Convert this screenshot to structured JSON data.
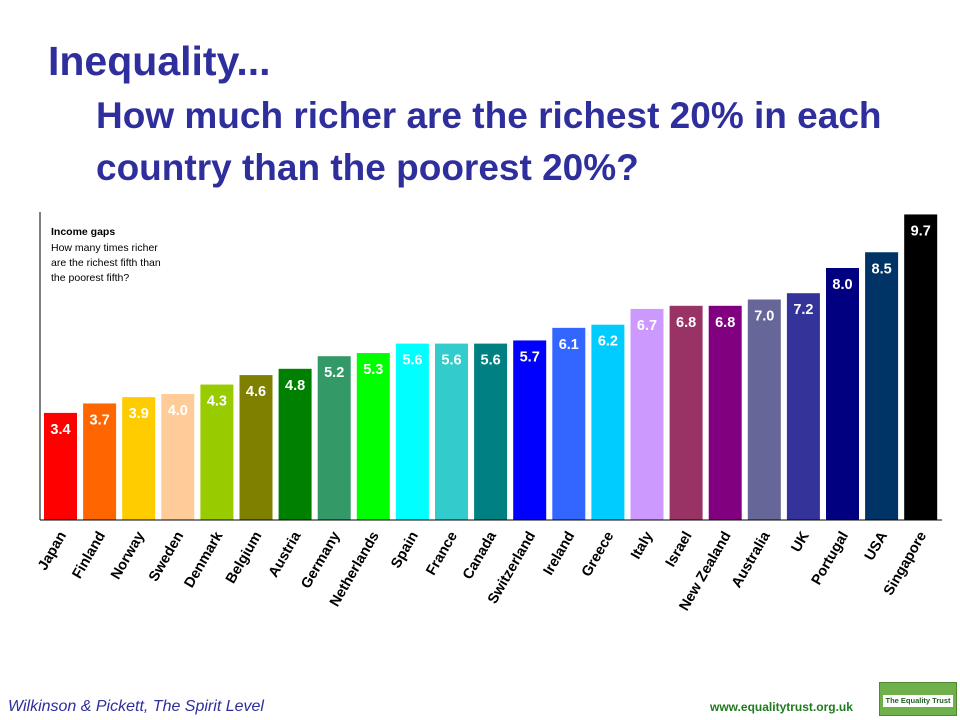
{
  "header": {
    "title_line1": "Inequality...",
    "title_line2": "How much richer are the richest 20% in each country than the poorest 20%?"
  },
  "footer": {
    "source": "Wilkinson & Pickett, The Spirit Level",
    "url": "www.equalitytrust.org.uk",
    "logo_text": "The Equality Trust"
  },
  "chart_data": {
    "type": "bar",
    "box_title": "Income gaps",
    "box_lines": [
      "How many times richer",
      "are the richest fifth than",
      "the poorest fifth?"
    ],
    "categories": [
      "Japan",
      "Finland",
      "Norway",
      "Sweden",
      "Denmark",
      "Belgium",
      "Austria",
      "Germany",
      "Netherlands",
      "Spain",
      "France",
      "Canada",
      "Switzerland",
      "Ireland",
      "Greece",
      "Italy",
      "Israel",
      "New Zealand",
      "Australia",
      "UK",
      "Portugal",
      "USA",
      "Singapore"
    ],
    "values": [
      3.4,
      3.7,
      3.9,
      4.0,
      4.3,
      4.6,
      4.8,
      5.2,
      5.3,
      5.6,
      5.6,
      5.6,
      5.7,
      6.1,
      6.2,
      6.7,
      6.8,
      6.8,
      7.0,
      7.2,
      8.0,
      8.5,
      9.7
    ],
    "value_labels": [
      "3.4",
      "3.7",
      "3.9",
      "4.0",
      "4.3",
      "4.6",
      "4.8",
      "5.2",
      "5.3",
      "5.6",
      "5.6",
      "5.6",
      "5.7",
      "6.1",
      "6.2",
      "6.7",
      "6.8",
      "6.8",
      "7.0",
      "7.2",
      "8.0",
      "8.5",
      "9.7"
    ],
    "colors": [
      "#ff0000",
      "#ff6600",
      "#ffcc00",
      "#ffcc99",
      "#99cc00",
      "#808000",
      "#008000",
      "#339966",
      "#00ff00",
      "#00ffff",
      "#33cccc",
      "#008080",
      "#0000ff",
      "#3366ff",
      "#00ccff",
      "#cc99ff",
      "#993366",
      "#800080",
      "#666699",
      "#333399",
      "#000080",
      "#003366",
      "#000000"
    ],
    "label_colors": [
      "#ffffff",
      "#ffffff",
      "#ffffff",
      "#ffffff",
      "#ffffff",
      "#ffffff",
      "#ffffff",
      "#ffffff",
      "#ffffff",
      "#ffffff",
      "#ffffff",
      "#ffffff",
      "#ffffff",
      "#ffffff",
      "#ffffff",
      "#ffffff",
      "#ffffff",
      "#ffffff",
      "#ffffff",
      "#ffffff",
      "#ffffff",
      "#ffffff",
      "#ffffff"
    ],
    "ylim": [
      0,
      10
    ],
    "grid": false,
    "legend": "none"
  }
}
